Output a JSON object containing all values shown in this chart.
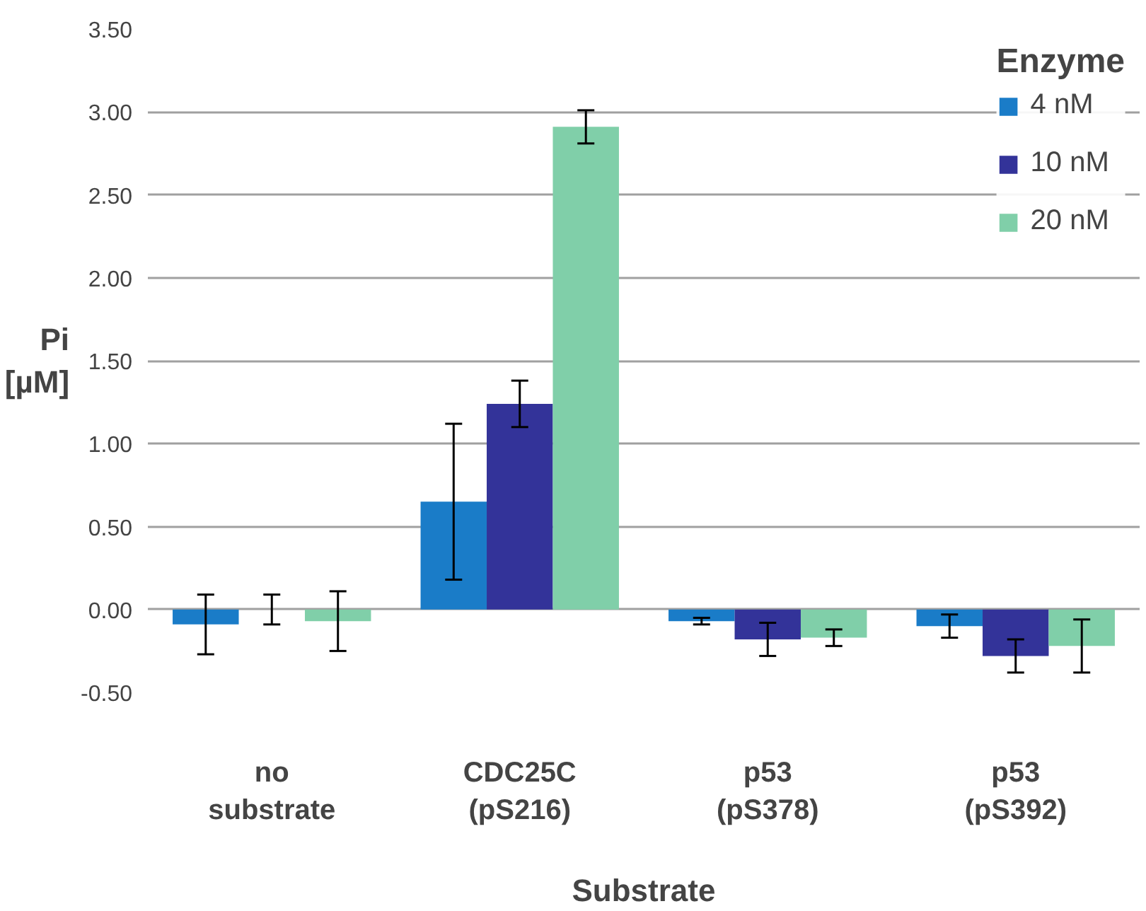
{
  "chart_data": {
    "type": "bar",
    "xlabel": "Substrate",
    "ylabel": "Pi\n[µM]",
    "legend_title": "Enzyme",
    "categories": [
      "no\nsubstrate",
      "CDC25C\n(pS216)",
      "p53\n(pS378)",
      "p53\n(pS392)"
    ],
    "series": [
      {
        "name": "4 nM",
        "color": "#1a7cc8",
        "values": [
          -0.09,
          0.65,
          -0.07,
          -0.1
        ],
        "errors": [
          0.18,
          0.47,
          0.02,
          0.07
        ]
      },
      {
        "name": "10 nM",
        "color": "#333399",
        "values": [
          0.0,
          1.24,
          -0.18,
          -0.28
        ],
        "errors": [
          0.09,
          0.14,
          0.1,
          0.1
        ]
      },
      {
        "name": "20 nM",
        "color": "#80cfa9",
        "values": [
          -0.07,
          2.91,
          -0.17,
          -0.22
        ],
        "errors": [
          0.18,
          0.1,
          0.05,
          0.16
        ]
      }
    ],
    "ylim": [
      -0.5,
      3.5
    ],
    "yticks": [
      {
        "value": -0.5,
        "label": "-0.50"
      },
      {
        "value": 0,
        "label": "0.00"
      },
      {
        "value": 0.5,
        "label": "0.50"
      },
      {
        "value": 1,
        "label": "1.00"
      },
      {
        "value": 1.5,
        "label": "1.50"
      },
      {
        "value": 2,
        "label": "2.00"
      },
      {
        "value": 2.5,
        "label": "2.50"
      },
      {
        "value": 3,
        "label": "3.00"
      },
      {
        "value": 3.5,
        "label": "3.50"
      }
    ],
    "grid": "y",
    "legend": "top right"
  }
}
